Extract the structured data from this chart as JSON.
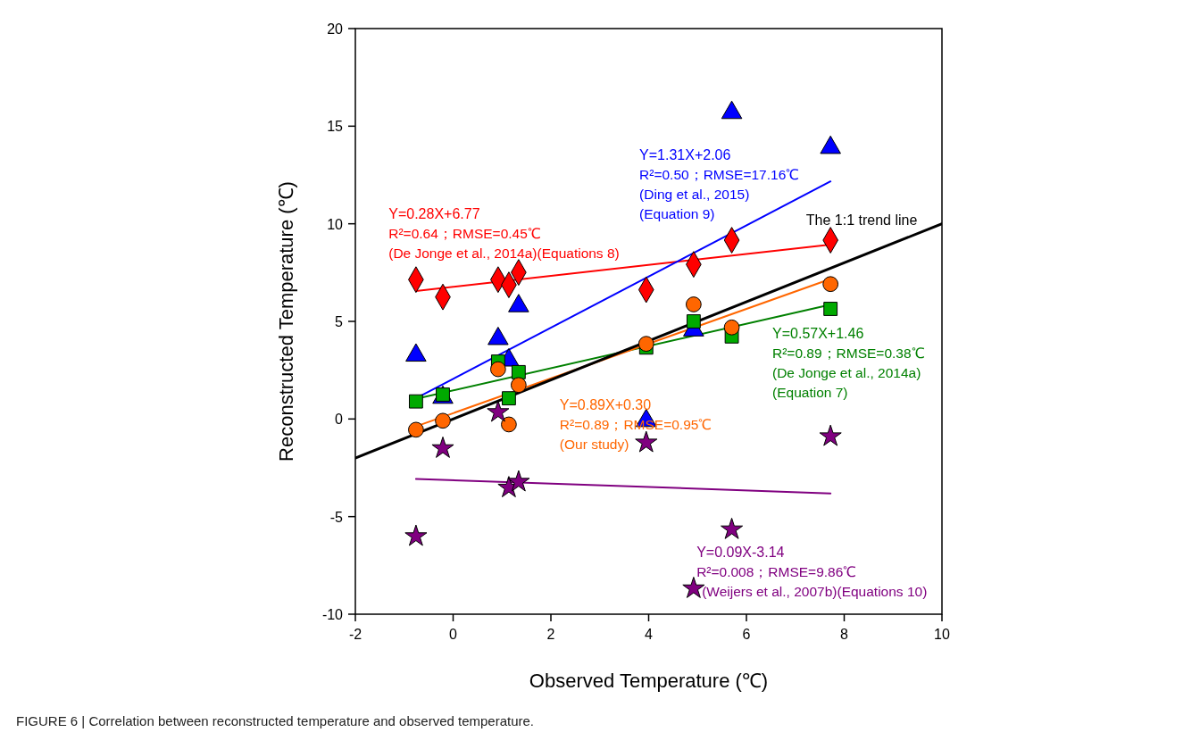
{
  "chart_data": {
    "type": "scatter",
    "xlabel": "Observed Temperature (℃)",
    "ylabel": "Reconstructed Temperature (℃)",
    "xlim": [
      -2,
      10
    ],
    "ylim": [
      -10,
      20
    ],
    "xticks": [
      -2,
      0,
      2,
      4,
      6,
      8,
      10
    ],
    "yticks": [
      -10,
      -5,
      0,
      5,
      10,
      15,
      20
    ],
    "series": [
      {
        "marker": "diamond",
        "color": "#ff0000",
        "x": [
          -0.76,
          -0.21,
          0.92,
          1.14,
          1.34,
          3.95,
          4.92,
          5.7,
          7.72
        ],
        "values": [
          7.14,
          6.25,
          7.14,
          6.87,
          7.51,
          6.62,
          7.92,
          9.16,
          9.16
        ]
      },
      {
        "marker": "triangle",
        "color": "#0000ff",
        "x": [
          -0.76,
          -0.21,
          0.92,
          1.14,
          1.34,
          3.95,
          4.92,
          5.7,
          7.72
        ],
        "values": [
          3.26,
          1.1,
          4.11,
          3.01,
          5.79,
          -0.09,
          4.55,
          15.69,
          13.9
        ]
      },
      {
        "marker": "square",
        "color": "#00aa00",
        "x": [
          -0.76,
          -0.21,
          0.92,
          1.14,
          1.34,
          3.95,
          4.92,
          5.7,
          7.72
        ],
        "values": [
          0.9,
          1.25,
          2.94,
          1.06,
          2.4,
          3.66,
          5.0,
          4.23,
          5.64
        ]
      },
      {
        "marker": "circle",
        "color": "#ff6600",
        "x": [
          -0.76,
          -0.21,
          0.92,
          1.14,
          1.34,
          3.95,
          4.92,
          5.7,
          7.72
        ],
        "values": [
          -0.55,
          -0.09,
          2.55,
          -0.28,
          1.74,
          3.85,
          5.87,
          4.69,
          6.91
        ]
      },
      {
        "marker": "star",
        "color": "#800080",
        "x": [
          -0.76,
          -0.21,
          0.92,
          1.14,
          1.34,
          3.95,
          4.92,
          5.7,
          7.72
        ],
        "values": [
          -6.01,
          -1.5,
          0.35,
          -3.52,
          -3.22,
          -1.21,
          -8.68,
          -5.66,
          -0.89
        ]
      },
      {
        "type": "line",
        "name": "Y=0.28X+6.77",
        "color": "#ff0000",
        "x": [
          -0.76,
          7.72
        ],
        "values": [
          6.56,
          8.93
        ]
      },
      {
        "type": "line",
        "name": "Y=1.31X+2.06",
        "color": "#0000ff",
        "x": [
          -0.76,
          7.72
        ],
        "values": [
          1.06,
          12.17
        ]
      },
      {
        "type": "line",
        "name": "Y=0.57X+1.46",
        "color": "#008000",
        "x": [
          -0.76,
          7.72
        ],
        "values": [
          1.03,
          5.86
        ]
      },
      {
        "type": "line",
        "name": "Y=0.89X+0.30",
        "color": "#ff6600",
        "x": [
          -0.76,
          7.72
        ],
        "values": [
          -0.38,
          7.17
        ]
      },
      {
        "type": "line",
        "name": "Y=0.09X-3.14",
        "color": "#800080",
        "x": [
          -0.76,
          7.72
        ],
        "values": [
          -3.07,
          -3.81
        ]
      },
      {
        "type": "line",
        "name": "The 1:1 trend line",
        "color": "#000000",
        "x": [
          -2,
          10
        ],
        "values": [
          -2,
          10
        ]
      }
    ],
    "annotations": [
      "R²=0.64；RMSE=0.45℃",
      "(De Jonge et al., 2014a)(Equations 8)",
      "R²=0.50；RMSE=17.16℃",
      "(Ding et al., 2015)",
      "(Equation 9)",
      "R²=0.89；RMSE=0.95℃",
      "(Our study)",
      "R²=0.89；RMSE=0.38℃",
      "(De Jonge et al., 2014a)",
      "(Equation 7)",
      "R²=0.008；RMSE=9.86℃",
      "(Weijers et al., 2007b)(Equations 10)",
      "FIGURE 6 | Correlation between reconstructed temperature and observed temperature."
    ]
  }
}
